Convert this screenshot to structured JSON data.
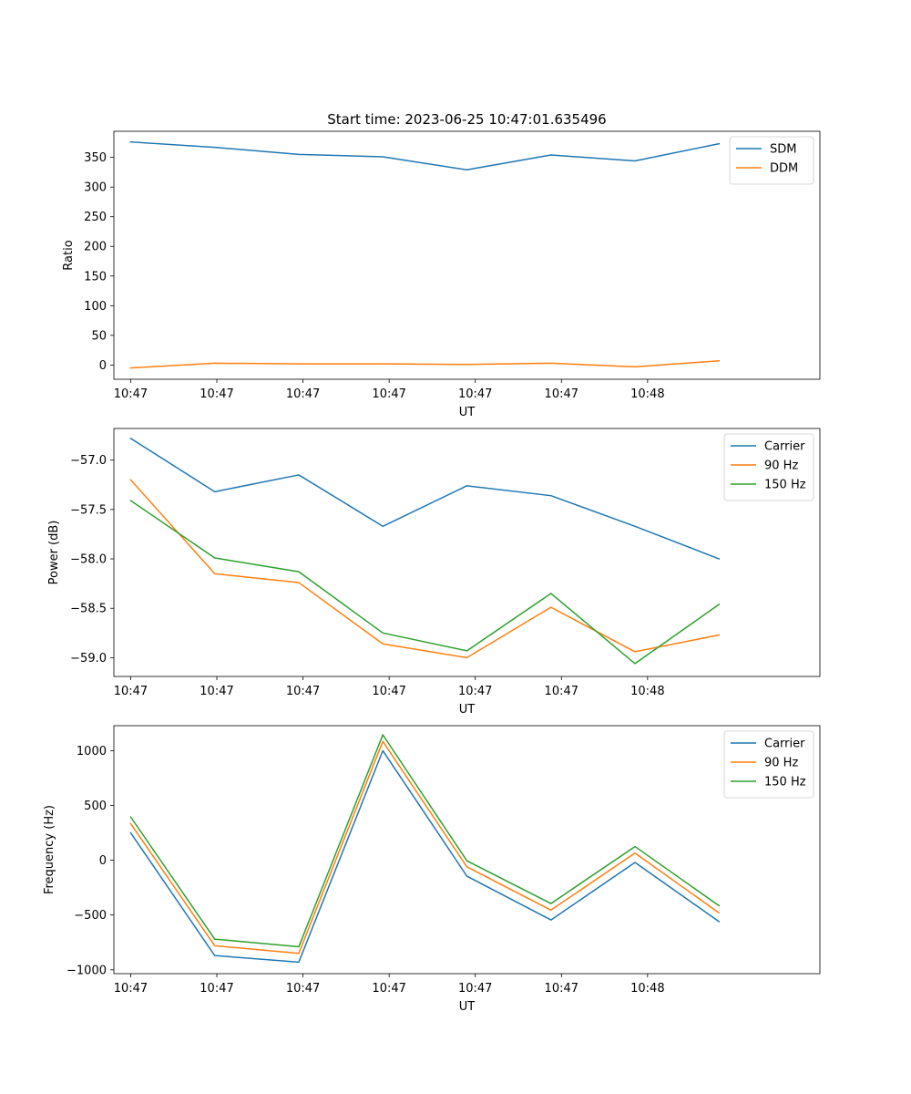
{
  "figure_title": "Start time: 2023-06-25 10:47:01.635496",
  "colors": {
    "blue": "#1f77b4",
    "orange": "#ff7f0e",
    "green": "#2ca02c"
  },
  "chart_data": [
    {
      "type": "line",
      "title": "Start time: 2023-06-25 10:47:01.635496",
      "xlabel": "UT",
      "ylabel": "Ratio",
      "x_tick_labels": [
        "10:47",
        "10:47",
        "10:47",
        "10:47",
        "10:47",
        "10:47",
        "10:48"
      ],
      "x": [
        1,
        2,
        3,
        4,
        5,
        6,
        7,
        8
      ],
      "xlim": [
        0.8,
        9.2
      ],
      "ylim": [
        -24,
        394
      ],
      "yticks": [
        0,
        50,
        100,
        150,
        200,
        250,
        300,
        350
      ],
      "grid": false,
      "legend_position": "top-right",
      "series": [
        {
          "name": "SDM",
          "color": "#1f77b4",
          "values": [
            376,
            367,
            355,
            351,
            329,
            354,
            344,
            373
          ]
        },
        {
          "name": "DDM",
          "color": "#ff7f0e",
          "values": [
            -5,
            3,
            2,
            2,
            1,
            3,
            -3,
            7
          ]
        }
      ]
    },
    {
      "type": "line",
      "xlabel": "UT",
      "ylabel": "Power (dB)",
      "x_tick_labels": [
        "10:47",
        "10:47",
        "10:47",
        "10:47",
        "10:47",
        "10:47",
        "10:48"
      ],
      "x": [
        1,
        2,
        3,
        4,
        5,
        6,
        7,
        8
      ],
      "xlim": [
        0.8,
        9.2
      ],
      "ylim": [
        -59.19,
        -56.68
      ],
      "yticks": [
        -59.0,
        -58.5,
        -58.0,
        -57.5,
        -57.0
      ],
      "ytick_labels": [
        "−59.0",
        "−58.5",
        "−58.0",
        "−57.5",
        "−57.0"
      ],
      "grid": false,
      "legend_position": "top-right",
      "series": [
        {
          "name": "Carrier",
          "color": "#1f77b4",
          "values": [
            -56.78,
            -57.32,
            -57.15,
            -57.67,
            -57.26,
            -57.36,
            -57.67,
            -58.0
          ]
        },
        {
          "name": "90 Hz",
          "color": "#ff7f0e",
          "values": [
            -57.2,
            -58.15,
            -58.24,
            -58.86,
            -59.0,
            -58.49,
            -58.94,
            -58.77
          ]
        },
        {
          "name": "150 Hz",
          "color": "#2ca02c",
          "values": [
            -57.41,
            -57.99,
            -58.13,
            -58.75,
            -58.93,
            -58.35,
            -59.06,
            -58.46
          ]
        }
      ]
    },
    {
      "type": "line",
      "xlabel": "UT",
      "ylabel": "Frequency (Hz)",
      "x_tick_labels": [
        "10:47",
        "10:47",
        "10:47",
        "10:47",
        "10:47",
        "10:47",
        "10:48"
      ],
      "x": [
        1,
        2,
        3,
        4,
        5,
        6,
        7,
        8
      ],
      "xlim": [
        0.8,
        9.2
      ],
      "ylim": [
        -1035,
        1228
      ],
      "yticks": [
        -1000,
        -500,
        0,
        500,
        1000
      ],
      "ytick_labels": [
        "−1000",
        "−500",
        "0",
        "500",
        "1000"
      ],
      "grid": false,
      "legend_position": "top-right",
      "series": [
        {
          "name": "Carrier",
          "color": "#1f77b4",
          "values": [
            250,
            -870,
            -930,
            1000,
            -145,
            -545,
            -20,
            -560
          ]
        },
        {
          "name": "90 Hz",
          "color": "#ff7f0e",
          "values": [
            335,
            -780,
            -850,
            1085,
            -60,
            -455,
            65,
            -480
          ]
        },
        {
          "name": "150 Hz",
          "color": "#2ca02c",
          "values": [
            395,
            -720,
            -790,
            1145,
            -5,
            -395,
            125,
            -415
          ]
        }
      ]
    }
  ]
}
